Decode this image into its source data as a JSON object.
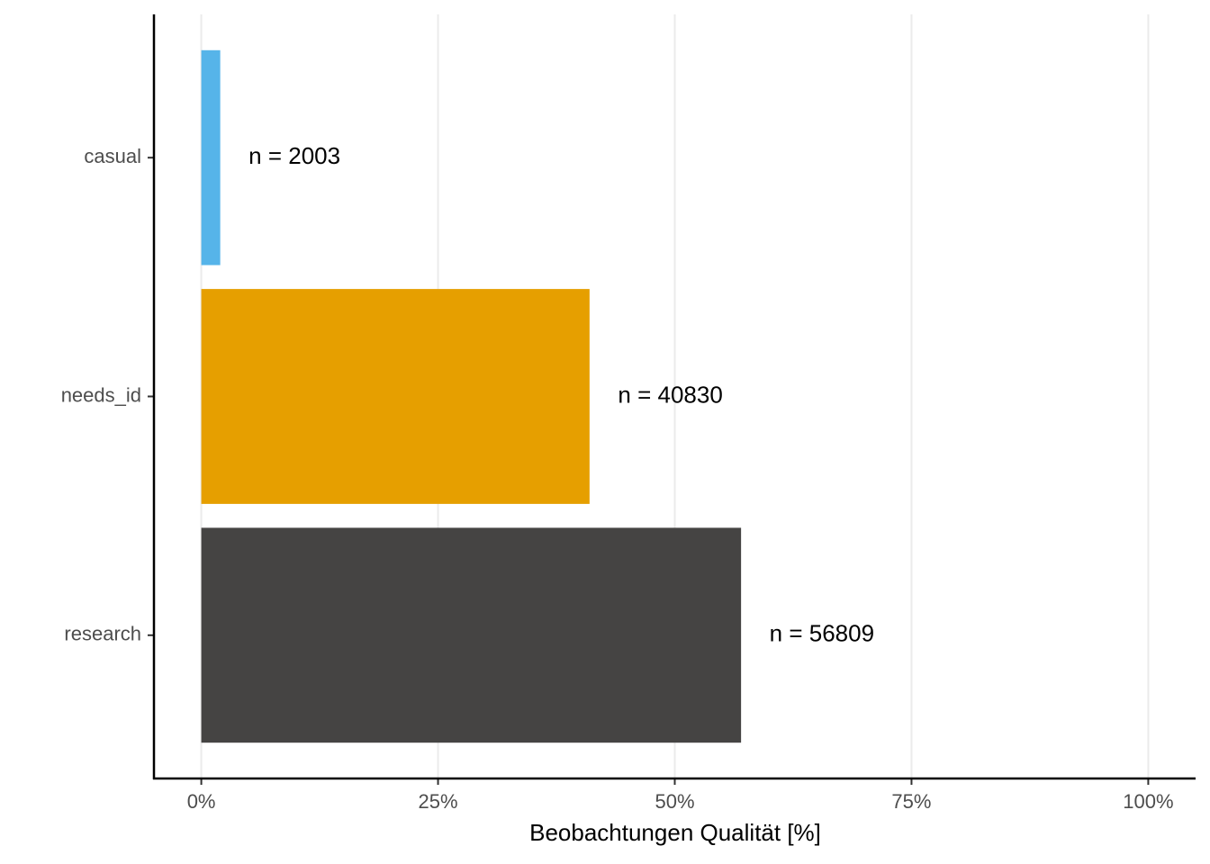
{
  "chart_data": {
    "type": "barh",
    "x_label": "Beobachtungen Qualität [%]",
    "categories": [
      "casual",
      "needs_id",
      "research"
    ],
    "values": [
      2.0,
      41.0,
      57.0
    ],
    "colors": [
      "#56b4e9",
      "#e69f00",
      "#454443"
    ],
    "bar_labels": [
      "n = 2003",
      "n = 40830",
      "n = 56809"
    ],
    "xlim": [
      -5,
      105
    ],
    "xticks": [
      {
        "value": 0,
        "label": "0%"
      },
      {
        "value": 25,
        "label": "25%"
      },
      {
        "value": 50,
        "label": "50%"
      },
      {
        "value": 75,
        "label": "75%"
      },
      {
        "value": 100,
        "label": "100%"
      }
    ],
    "grid": true
  }
}
